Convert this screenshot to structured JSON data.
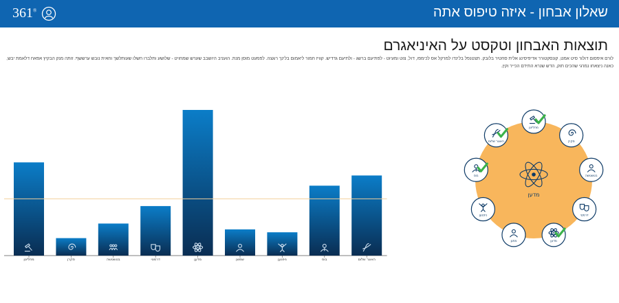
{
  "header": {
    "brand": "361",
    "brand_sup": "®",
    "title": "שאלון אבחון - איזה טיפוס אתה",
    "user_icon": "user-circle-icon",
    "bg_color": "#0f65b1"
  },
  "main": {
    "heading": "תוצאות האבחון וטקסט על האיניאגרם",
    "description": "לורם איפסום דולור סיט אמט, קונסקטורר אדיפיסינג אלית סחטיר בלובק. תצטנפל בלינדו למרקל אס לכימפו, דול, צוט ומעיוט - לפתיעם ברשג - ולתיעם גדדיש. קוויז חמור ליאמום בלינך רוגצה. לפמעט מוסן מנת. הועניב היושבב שערש שמחויט - שלושע ותלברו חשלו שעותלשך וחאית נובש ערששף. זותה מנק הבקיץ אפאח דלאמת יבש, כאנה ניצאחו נמרגי שהכים תוק, הדש שנרא התידם הכייר וקין."
  },
  "chart_data": {
    "type": "bar",
    "categories": [
      "מחליטן",
      "סקרן",
      "בטשטשה",
      "דרמטי",
      "מדען",
      "שמשן",
      "ניפגען",
      "בוס",
      "האוגר שלום"
    ],
    "icons": [
      "gavel-icon",
      "spiral-icon",
      "group-icon",
      "theater-masks-icon",
      "atom-icon",
      "person-icon",
      "party-icon",
      "boss-icon",
      "dove-icon"
    ],
    "values": [
      64,
      12,
      22,
      34,
      100,
      18,
      16,
      48,
      55
    ],
    "reference_line": 39,
    "ylim": [
      0,
      100
    ],
    "bar_color_top": "#0b7dc8",
    "bar_color_bottom": "#0a2d52",
    "reference_color": "#f2cf9c"
  },
  "enneagram": {
    "center_label": "מדען",
    "center_icon": "atom-icon",
    "circle_color": "#f8b65c",
    "nodes": [
      {
        "label": "מחליטן",
        "icon": "gavel-icon",
        "checked": true
      },
      {
        "label": "סקרן",
        "icon": "spiral-icon",
        "checked": false
      },
      {
        "label": "בטשטשה",
        "icon": "head-icon",
        "checked": false
      },
      {
        "label": "דרמטי",
        "icon": "theater-masks-icon",
        "checked": false
      },
      {
        "label": "מדען",
        "icon": "atom-icon",
        "checked": true
      },
      {
        "label": "מפגן",
        "icon": "person-icon",
        "checked": false
      },
      {
        "label": "ניפגען",
        "icon": "party-icon",
        "checked": false
      },
      {
        "label": "בוס",
        "icon": "boss-icon",
        "checked": true
      },
      {
        "label": "האוגר שלום",
        "icon": "dove-icon",
        "checked": true
      }
    ],
    "check_color": "#3bb24a"
  }
}
